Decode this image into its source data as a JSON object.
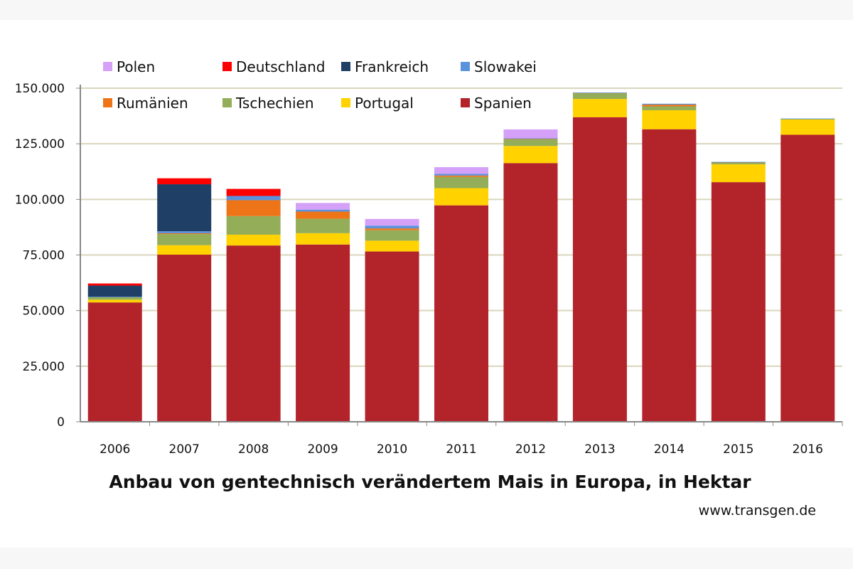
{
  "chart_data": {
    "type": "bar",
    "stacked": true,
    "title": "Anbau von gentechnisch verändertem Mais in Europa, in Hektar",
    "source": "www.transgen.de",
    "xlabel": "",
    "ylabel": "",
    "ylim": [
      0,
      150000
    ],
    "yticks": [
      0,
      25000,
      50000,
      75000,
      100000,
      125000,
      150000
    ],
    "ytick_labels": [
      "0",
      "25.000",
      "50.000",
      "75.000",
      "100.000",
      "125.000",
      "150.000"
    ],
    "grid": true,
    "legend_position": "top",
    "categories": [
      "2006",
      "2007",
      "2008",
      "2009",
      "2010",
      "2011",
      "2012",
      "2013",
      "2014",
      "2015",
      "2016"
    ],
    "series": [
      {
        "name": "Spanien",
        "color": "#b3232a",
        "values": [
          53667,
          75148,
          79269,
          79706,
          76575,
          97326,
          116307,
          136962,
          131538,
          107749,
          129081
        ]
      },
      {
        "name": "Portugal",
        "color": "#ffd200",
        "values": [
          1250,
          4263,
          4851,
          5094,
          4868,
          7723,
          7700,
          8202,
          8542,
          8017,
          7069
        ]
      },
      {
        "name": "Tschechien",
        "color": "#93ad58",
        "values": [
          1290,
          5000,
          8380,
          6480,
          4680,
          5090,
          3052,
          2560,
          1754,
          997,
          75
        ]
      },
      {
        "name": "Rumänien",
        "color": "#ee7418",
        "values": [
          0,
          350,
          7146,
          3244,
          822,
          588,
          217,
          220,
          771,
          3,
          0
        ]
      },
      {
        "name": "Slowakei",
        "color": "#5b92dc",
        "values": [
          30,
          900,
          1900,
          875,
          1248,
          761,
          189,
          100,
          411,
          105,
          138
        ]
      },
      {
        "name": "Frankreich",
        "color": "#1f3f66",
        "values": [
          5000,
          21147,
          0,
          0,
          0,
          0,
          0,
          0,
          0,
          0,
          0
        ]
      },
      {
        "name": "Deutschland",
        "color": "#ff0000",
        "values": [
          950,
          2685,
          3173,
          0,
          0,
          0,
          0,
          0,
          0,
          0,
          0
        ]
      },
      {
        "name": "Polen",
        "color": "#d4a0f8",
        "values": [
          0,
          0,
          0,
          3000,
          3000,
          3000,
          4000,
          0,
          0,
          0,
          0
        ]
      }
    ],
    "legend_order": [
      "Polen",
      "Deutschland",
      "Frankreich",
      "Slowakei",
      "Rumänien",
      "Tschechien",
      "Portugal",
      "Spanien"
    ]
  }
}
